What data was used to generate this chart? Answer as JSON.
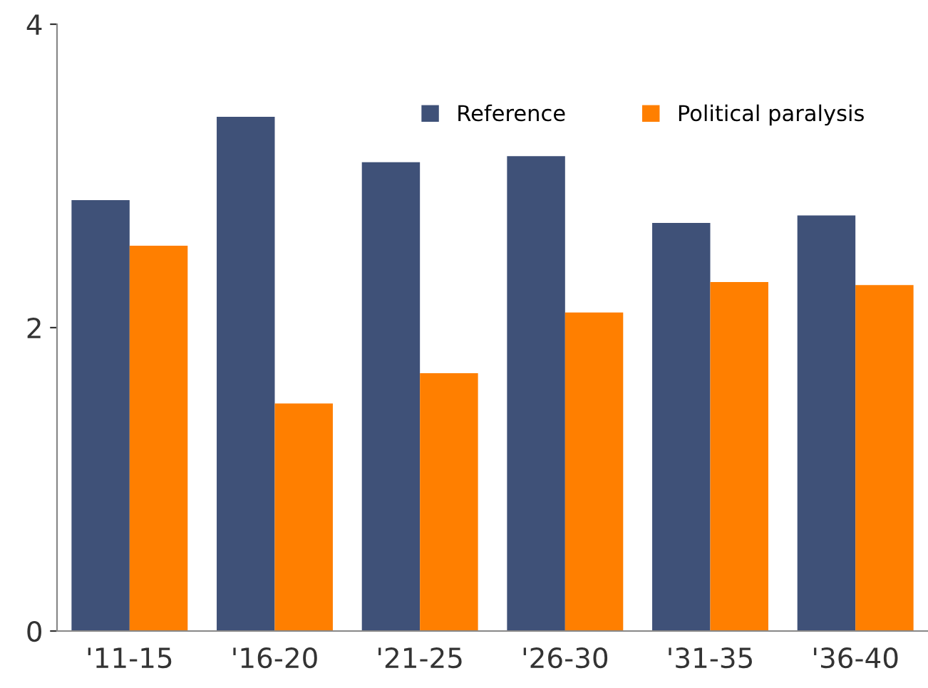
{
  "chart_data": {
    "type": "bar",
    "categories": [
      "'11-15",
      "'16-20",
      "'21-25",
      "'26-30",
      "'31-35",
      "'36-40"
    ],
    "series": [
      {
        "name": "Reference",
        "color": "#3f5178",
        "values": [
          2.84,
          3.39,
          3.09,
          3.13,
          2.69,
          2.74
        ]
      },
      {
        "name": "Political paralysis",
        "color": "#ff7f00",
        "values": [
          2.54,
          1.5,
          1.7,
          2.1,
          2.3,
          2.28
        ]
      }
    ],
    "ylim": [
      0,
      4
    ],
    "yticks": [
      0,
      2,
      4
    ],
    "grid": false,
    "legend": "top right"
  }
}
